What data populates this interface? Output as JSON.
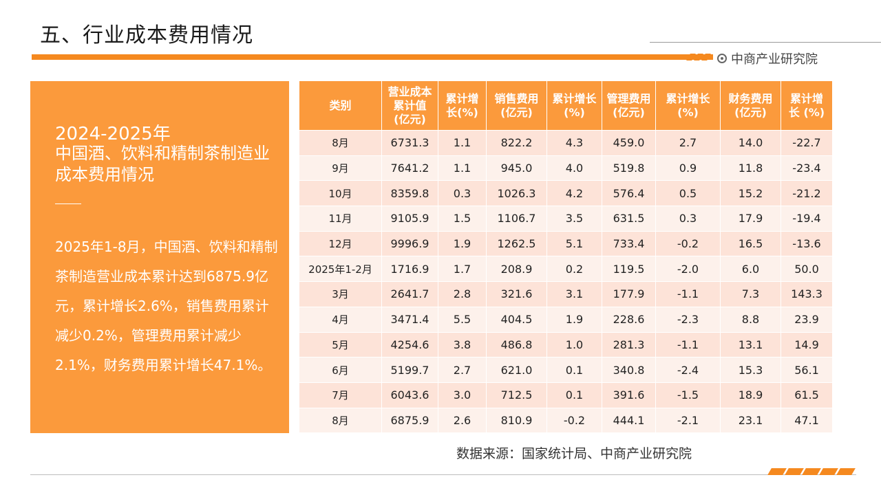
{
  "header": {
    "title": "五、行业成本费用情况",
    "brand": "中商产业研究院",
    "accent_color": "#f5891f",
    "icon": "target-icon"
  },
  "side_panel": {
    "year": "2024-2025年",
    "heading": "中国酒、饮料和精制茶制造业成本费用情况",
    "body": "2025年1-8月，中国酒、饮料和精制茶制造营业成本累计达到6875.9亿元，累计增长2.6%，销售费用累计减少0.2%，管理费用累计减少2.1%，财务费用累计增长47.1%。",
    "bg_color": "#fb9a3c"
  },
  "table": {
    "columns": [
      [
        "类别"
      ],
      [
        "营业成本",
        "累计值",
        "(亿元)"
      ],
      [
        "累计增",
        "长(%)"
      ],
      [
        "销售费用",
        "(亿元)"
      ],
      [
        "累计增长",
        "(%)"
      ],
      [
        "管理费用",
        "(亿元)"
      ],
      [
        "累计增长",
        "(%)"
      ],
      [
        "财务费用",
        "(亿元)"
      ],
      [
        "累计增",
        "长 (%)"
      ]
    ],
    "rows": [
      [
        "8月",
        "6731.3",
        "1.1",
        "822.2",
        "4.3",
        "459.0",
        "2.7",
        "14.0",
        "-22.7"
      ],
      [
        "9月",
        "7641.2",
        "1.1",
        "945.0",
        "4.0",
        "519.8",
        "0.9",
        "11.8",
        "-23.4"
      ],
      [
        "10月",
        "8359.8",
        "0.3",
        "1026.3",
        "4.2",
        "576.4",
        "0.5",
        "15.2",
        "-21.2"
      ],
      [
        "11月",
        "9105.9",
        "1.5",
        "1106.7",
        "3.5",
        "631.5",
        "0.3",
        "17.9",
        "-19.4"
      ],
      [
        "12月",
        "9996.9",
        "1.9",
        "1262.5",
        "5.1",
        "733.4",
        "-0.2",
        "16.5",
        "-13.6"
      ],
      [
        "2025年1-2月",
        "1716.9",
        "1.7",
        "208.9",
        "0.2",
        "119.5",
        "-2.0",
        "6.0",
        "50.0"
      ],
      [
        "3月",
        "2641.7",
        "2.8",
        "321.6",
        "3.1",
        "177.9",
        "-1.1",
        "7.3",
        "143.3"
      ],
      [
        "4月",
        "3471.4",
        "5.5",
        "404.5",
        "1.9",
        "228.6",
        "-2.3",
        "8.8",
        "23.9"
      ],
      [
        "5月",
        "4254.6",
        "3.8",
        "486.8",
        "1.0",
        "281.3",
        "-1.1",
        "13.1",
        "14.9"
      ],
      [
        "6月",
        "5199.7",
        "2.7",
        "621.0",
        "0.1",
        "340.8",
        "-2.4",
        "15.3",
        "56.1"
      ],
      [
        "7月",
        "6043.6",
        "3.0",
        "712.5",
        "0.1",
        "391.6",
        "-1.5",
        "18.9",
        "61.5"
      ],
      [
        "8月",
        "6875.9",
        "2.6",
        "810.9",
        "-0.2",
        "444.1",
        "-2.1",
        "23.1",
        "47.1"
      ]
    ],
    "header_color": "#fb9a3c",
    "row_colors": [
      "#fde3d8",
      "#fdf1eb"
    ]
  },
  "footer": {
    "source": "数据来源：国家统计局、中商产业研究院"
  }
}
